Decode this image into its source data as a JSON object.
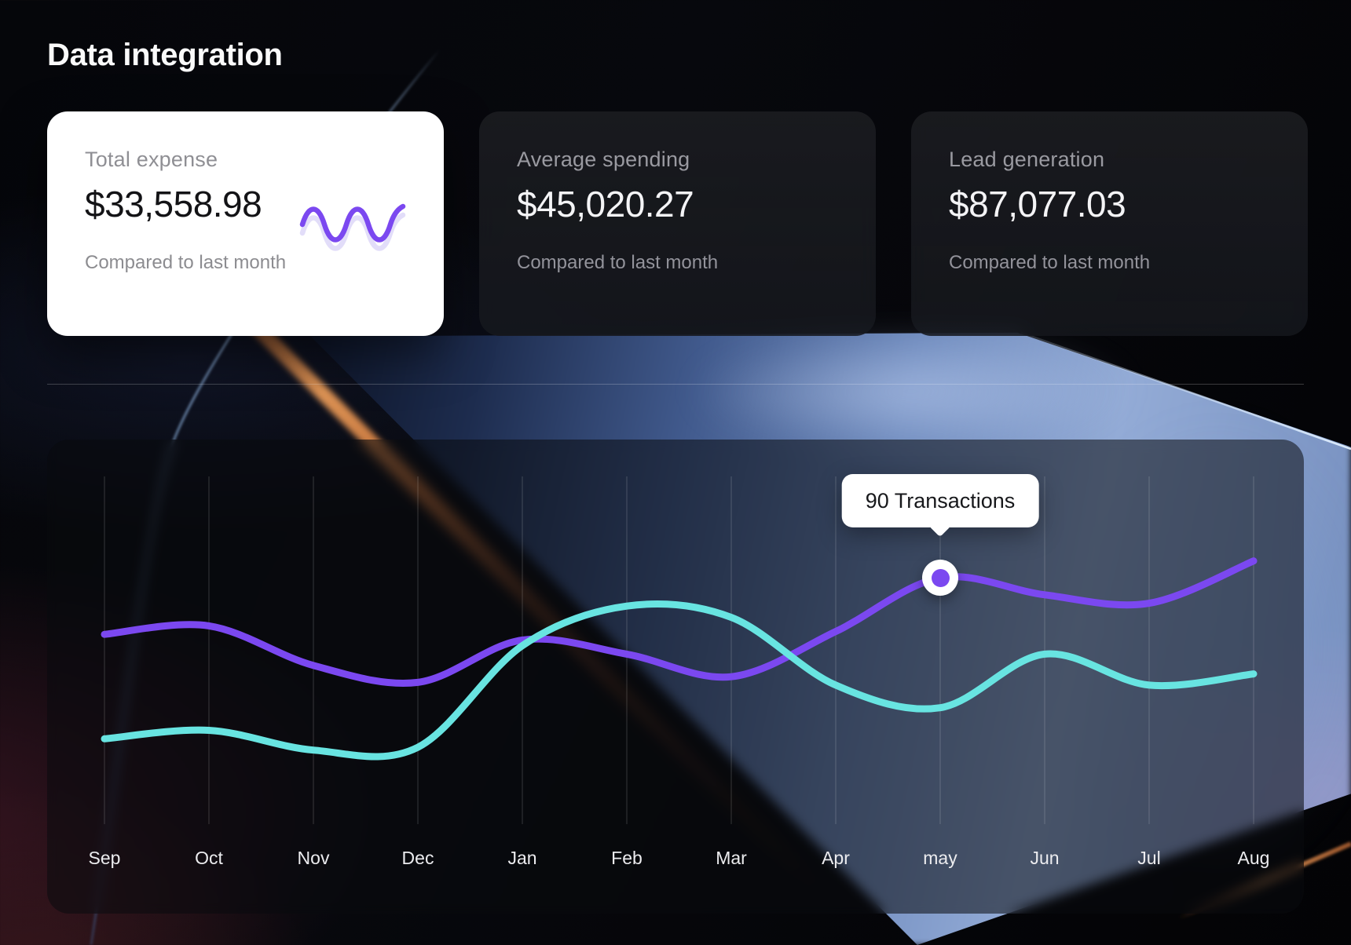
{
  "page": {
    "title": "Data integration"
  },
  "cards": [
    {
      "label": "Total  expense",
      "value": "$33,558.98",
      "caption": "Compared to last month",
      "variant": "light",
      "sparkline_icon": "purple-wave-sparkline"
    },
    {
      "label": "Average spending",
      "value": "$45,020.27",
      "caption": "Compared to last month",
      "variant": "dark"
    },
    {
      "label": "Lead generation",
      "value": "$87,077.03",
      "caption": "Compared to last month",
      "variant": "dark"
    }
  ],
  "chart_data": {
    "type": "line",
    "x": [
      "Sep",
      "Oct",
      "Nov",
      "Dec",
      "Jan",
      "Feb",
      "Mar",
      "Apr",
      "may",
      "Jun",
      "Jul",
      "Aug"
    ],
    "series": [
      {
        "name": "transactions-purple",
        "color": "#7B48F0",
        "values": [
          70,
          73,
          59,
          53,
          68,
          63,
          55,
          71,
          90,
          84,
          81,
          96
        ]
      },
      {
        "name": "transactions-cyan",
        "color": "#68E4E1",
        "values": [
          33,
          36,
          29,
          30,
          66,
          80,
          76,
          52,
          44,
          63,
          52,
          56
        ]
      }
    ],
    "ylim": [
      0,
      139
    ],
    "grid": "vertical",
    "legend": "none",
    "title": "",
    "xlabel": "",
    "ylabel": "",
    "tooltip": {
      "text": "90 Transactions",
      "x": "may",
      "series": "transactions-purple",
      "value": 90
    }
  },
  "colors": {
    "accent_purple": "#7B48F0",
    "accent_cyan": "#68E4E1",
    "grid_line": "rgba(255,255,255,0.13)",
    "axis_label": "#ECECEF"
  }
}
